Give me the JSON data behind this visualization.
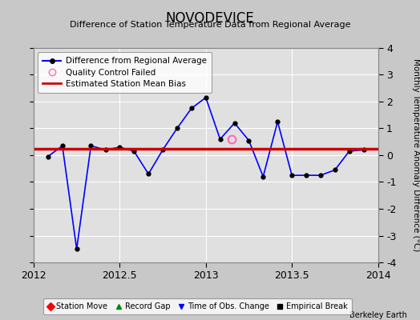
{
  "title": "NOVODEVICE",
  "subtitle": "Difference of Station Temperature Data from Regional Average",
  "ylabel_right": "Monthly Temperature Anomaly Difference (°C)",
  "credit": "Berkeley Earth",
  "xlim": [
    2012,
    2014
  ],
  "ylim": [
    -4,
    4
  ],
  "yticks": [
    -4,
    -3,
    -2,
    -1,
    0,
    1,
    2,
    3,
    4
  ],
  "xticks": [
    2012,
    2012.5,
    2013,
    2013.5,
    2014
  ],
  "xticklabels": [
    "2012",
    "2012.5",
    "2013",
    "2013.5",
    "2014"
  ],
  "bias_value": 0.25,
  "line_x": [
    2012.083,
    2012.167,
    2012.25,
    2012.333,
    2012.417,
    2012.5,
    2012.583,
    2012.667,
    2012.75,
    2012.833,
    2012.917,
    2013.0,
    2013.083,
    2013.167,
    2013.25,
    2013.333,
    2013.417,
    2013.5,
    2013.583,
    2013.667,
    2013.75,
    2013.833,
    2013.917
  ],
  "line_y": [
    -0.05,
    0.35,
    -3.5,
    0.35,
    0.2,
    0.3,
    0.15,
    -0.7,
    0.2,
    1.0,
    1.75,
    2.15,
    0.6,
    1.2,
    0.55,
    -0.8,
    1.25,
    -0.75,
    -0.75,
    -0.75,
    -0.55,
    0.15,
    0.2
  ],
  "qc_fail_x": [
    2013.15
  ],
  "qc_fail_y": [
    0.6
  ],
  "line_color": "#0000FF",
  "bias_color": "#CC0000",
  "marker_color": "#000000",
  "background_color": "#C8C8C8",
  "plot_bg_color": "#E0E0E0",
  "grid_color": "#FFFFFF"
}
